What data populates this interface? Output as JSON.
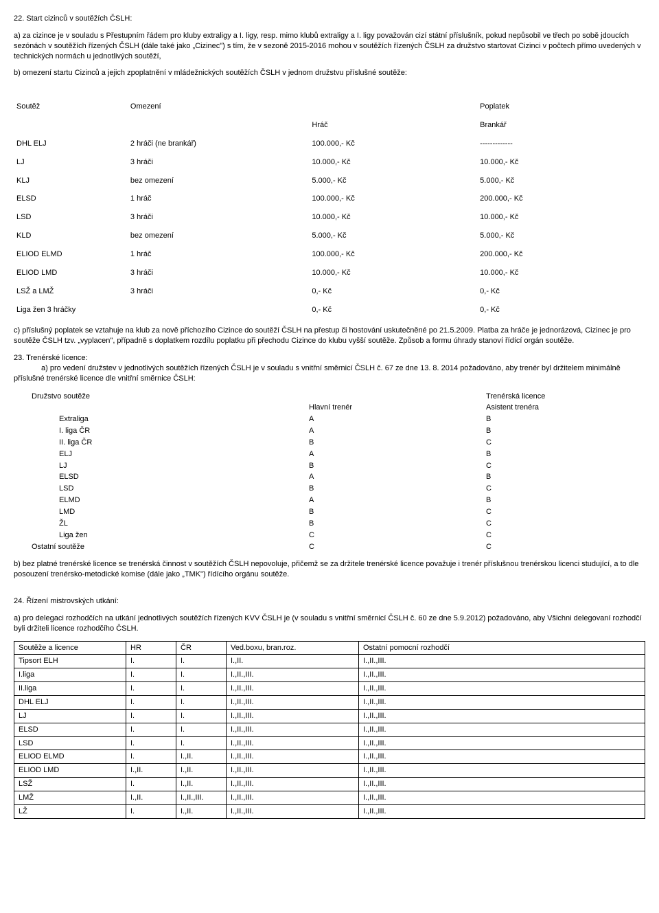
{
  "s22": {
    "title": "22. Start cizinců v soutěžích ČSLH:",
    "a": "a) za cizince je v souladu s Přestupním řádem pro kluby extraligy a I. ligy, resp. mimo klubů extraligy a I. ligy považován cizí státní příslušník, pokud nepůsobil ve třech po sobě jdoucích sezónách v soutěžích řízených ČSLH (dále také jako „Cizinec\") s tím, že v sezoně 2015-2016 mohou v soutěžích řízených ČSLH za družstvo startovat Cizinci v počtech přímo uvedených v technických normách u jednotlivých soutěží,",
    "b": "b) omezení startu Cizinců a jejich zpoplatnění v mládežnických soutěžích ČSLH v jednom družstvu příslušné soutěže:",
    "tbl_header": {
      "soutez": "Soutěž",
      "omezeni": "Omezení",
      "poplatek": "Poplatek",
      "hrac": "Hráč",
      "brankar": "Brankář"
    },
    "rows": [
      {
        "n": "DHL ELJ",
        "o": "2 hráči (ne brankář)",
        "p": "100.000,- Kč",
        "b": "-------------"
      },
      {
        "n": "LJ",
        "o": "3 hráči",
        "p": "10.000,- Kč",
        "b": "10.000,- Kč"
      },
      {
        "n": "KLJ",
        "o": "bez omezení",
        "p": "5.000,- Kč",
        "b": "5.000,- Kč"
      },
      {
        "n": "ELSD",
        "o": "1 hráč",
        "p": "100.000,- Kč",
        "b": "200.000,- Kč"
      },
      {
        "n": "LSD",
        "o": "3 hráči",
        "p": "10.000,- Kč",
        "b": "10.000,- Kč"
      },
      {
        "n": "KLD",
        "o": "bez omezení",
        "p": "5.000,- Kč",
        "b": "5.000,- Kč"
      },
      {
        "n": "ELIOD ELMD",
        "o": "1 hráč",
        "p": "100.000,- Kč",
        "b": "200.000,- Kč"
      },
      {
        "n": "ELIOD LMD",
        "o": "3 hráči",
        "p": "10.000,- Kč",
        "b": "10.000,- Kč"
      },
      {
        "n": "LSŽ a LMŽ",
        "o": "3 hráči",
        "p": "0,- Kč",
        "b": "0,- Kč"
      },
      {
        "n": "Liga žen 3 hráčky",
        "o": "",
        "p": "0,- Kč",
        "b": "0,- Kč"
      }
    ],
    "c": "c) příslušný poplatek se vztahuje na klub za nově příchozího Cizince do soutěží ČSLH na přestup či hostování uskutečněné po 21.5.2009. Platba za hráče je jednorázová, Cizinec je pro soutěže ČSLH tzv. „vyplacen\", případně s doplatkem rozdílu poplatku při přechodu Cizince do klubu vyšší soutěže. Způsob a formu úhrady stanoví řídící orgán soutěže."
  },
  "s23": {
    "title": "23. Trenérské licence:",
    "a": "a) pro vedení družstev v jednotlivých soutěžích řízených ČSLH je v souladu s vnitřní směrnicí ČSLH č. 67 ze dne 13. 8. 2014 požadováno, aby trenér byl držitelem minimálně příslušné trenérské licence dle vnitřní směrnice ČSLH:",
    "hdr": {
      "druzstvo": "Družstvo soutěže",
      "licence": "Trenérská licence",
      "hlavni": "Hlavní trenér",
      "asistent": "Asistent trenéra"
    },
    "rows": [
      {
        "n": "Extraliga",
        "h": "A",
        "a": "B"
      },
      {
        "n": "I. liga ČR",
        "h": "A",
        "a": "B"
      },
      {
        "n": "II. liga ČR",
        "h": "B",
        "a": "C"
      },
      {
        "n": "ELJ",
        "h": "A",
        "a": "B"
      },
      {
        "n": "LJ",
        "h": "B",
        "a": "C"
      },
      {
        "n": "ELSD",
        "h": "A",
        "a": "B"
      },
      {
        "n": "LSD",
        "h": "B",
        "a": "C"
      },
      {
        "n": "ELMD",
        "h": "A",
        "a": "B"
      },
      {
        "n": "LMD",
        "h": "B",
        "a": "C"
      },
      {
        "n": "ŽL",
        "h": "B",
        "a": "C"
      },
      {
        "n": "Liga žen",
        "h": "C",
        "a": "C"
      },
      {
        "n": "Ostatní soutěže",
        "h": "C",
        "a": "C"
      }
    ],
    "b": "b) bez platné trenérské licence se trenérská činnost v soutěžích ČSLH nepovoluje, přičemž se za držitele trenérské licence považuje i trenér příslušnou trenérskou licenci studující, a to dle posouzení trenérsko-metodické komise (dále jako „TMK\") řídícího orgánu soutěže."
  },
  "s24": {
    "title": "24. Řízení mistrovských utkání:",
    "a": "a) pro delegaci rozhodčích na utkání jednotlivých soutěžích řízených KVV ČSLH je (v souladu s vnitřní směrnicí ČSLH č. 60 ze dne 5.9.2012) požadováno, aby Všichni delegovaní rozhodčí byli držiteli licence rozhodčího ČSLH.",
    "hdr": {
      "s": "Soutěže a licence",
      "hr": "HR",
      "cr": "ČR",
      "ved": "Ved.boxu, bran.roz.",
      "ost": "Ostatní pomocní rozhodčí"
    },
    "rows": [
      {
        "s": "Tipsort ELH",
        "hr": "I.",
        "cr": "I.",
        "v": "I.,II.",
        "o": "I.,II.,III."
      },
      {
        "s": "I.liga",
        "hr": "I.",
        "cr": "I.",
        "v": "I.,II.,III.",
        "o": "I.,II.,III."
      },
      {
        "s": "II.liga",
        "hr": "I.",
        "cr": "I.",
        "v": "I.,II.,III.",
        "o": "I.,II.,III."
      },
      {
        "s": "DHL ELJ",
        "hr": "I.",
        "cr": "I.",
        "v": "I.,II.,III.",
        "o": "I.,II.,III."
      },
      {
        "s": "LJ",
        "hr": "I.",
        "cr": "I.",
        "v": "I.,II.,III.",
        "o": "I.,II.,III."
      },
      {
        "s": "ELSD",
        "hr": "I.",
        "cr": "I.",
        "v": "I.,II.,III.",
        "o": "I.,II.,III."
      },
      {
        "s": "LSD",
        "hr": "I.",
        "cr": "I.",
        "v": "I.,II.,III.",
        "o": "I.,II.,III."
      },
      {
        "s": "ELIOD ELMD",
        "hr": "I.",
        "cr": "I.,II.",
        "v": "I.,II.,III.",
        "o": "I.,II.,III."
      },
      {
        "s": "ELIOD LMD",
        "hr": "I.,II.",
        "cr": "I.,II.",
        "v": "I.,II.,III.",
        "o": "I.,II.,III."
      },
      {
        "s": "LSŽ",
        "hr": "I.",
        "cr": "I.,II.",
        "v": "I.,II.,III.",
        "o": "I.,II.,III."
      },
      {
        "s": "LMŽ",
        "hr": "I.,II.",
        "cr": "I.,II.,III.",
        "v": "I.,II.,III.",
        "o": "I.,II.,III."
      },
      {
        "s": "LŽ",
        "hr": "I.",
        "cr": "I.,II.",
        "v": "I.,II.,III.",
        "o": "I.,II.,III."
      }
    ]
  }
}
